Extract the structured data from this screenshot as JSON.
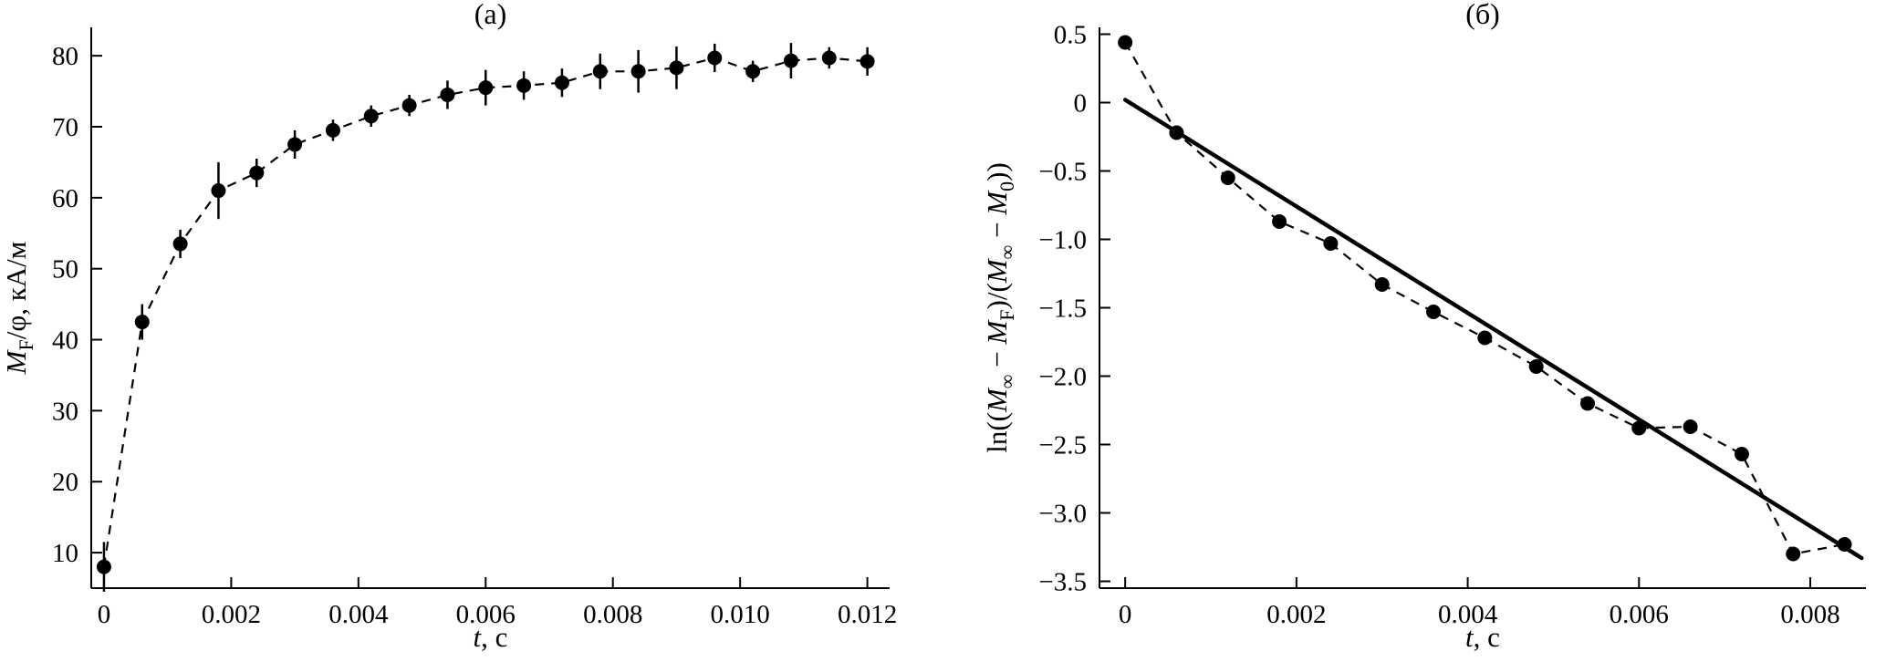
{
  "figure": {
    "background": "#ffffff",
    "ink_color": "#000000"
  },
  "chart_data": [
    {
      "type": "line",
      "panel_label": "(а)",
      "xlabel_segments": [
        {
          "text": "t",
          "italic": true
        },
        {
          "text": ", с"
        }
      ],
      "ylabel_segments": [
        {
          "text": "M",
          "italic": true
        },
        {
          "text": "F",
          "sub": true
        },
        {
          "text": "/φ, кА/м"
        }
      ],
      "xlim": [
        -0.0002,
        0.01235
      ],
      "ylim": [
        5,
        84
      ],
      "grid": false,
      "axes": "left-bottom",
      "legend": "none",
      "xticks": [
        {
          "v": 0,
          "label": "0"
        },
        {
          "v": 0.002,
          "label": "0.002"
        },
        {
          "v": 0.004,
          "label": "0.004"
        },
        {
          "v": 0.006,
          "label": "0.006"
        },
        {
          "v": 0.008,
          "label": "0.008"
        },
        {
          "v": 0.01,
          "label": "0.010"
        },
        {
          "v": 0.012,
          "label": "0.012"
        }
      ],
      "yticks": [
        {
          "v": 10,
          "label": "10"
        },
        {
          "v": 20,
          "label": "20"
        },
        {
          "v": 30,
          "label": "30"
        },
        {
          "v": 40,
          "label": "40"
        },
        {
          "v": 50,
          "label": "50"
        },
        {
          "v": 60,
          "label": "60"
        },
        {
          "v": 70,
          "label": "70"
        },
        {
          "v": 80,
          "label": "80"
        }
      ],
      "series": [
        {
          "name": "magnetization-vs-time",
          "style": "dashed-markers",
          "x": [
            0.0,
            0.0006,
            0.0012,
            0.0018,
            0.0024,
            0.003,
            0.0036,
            0.0042,
            0.0048,
            0.0054,
            0.006,
            0.0066,
            0.0072,
            0.0078,
            0.0084,
            0.009,
            0.0096,
            0.0102,
            0.0108,
            0.0114,
            0.012
          ],
          "y": [
            8.0,
            42.5,
            53.5,
            61.0,
            63.5,
            67.5,
            69.5,
            71.5,
            73.0,
            74.5,
            75.5,
            75.8,
            76.2,
            77.8,
            77.8,
            78.3,
            79.7,
            77.8,
            79.3,
            79.7,
            79.2
          ],
          "yerr": [
            3.5,
            2.5,
            2.0,
            4.0,
            2.0,
            2.0,
            1.5,
            1.5,
            1.5,
            2.0,
            2.5,
            2.0,
            2.0,
            2.5,
            3.0,
            3.0,
            2.0,
            1.5,
            2.5,
            1.5,
            2.0
          ]
        }
      ]
    },
    {
      "type": "line",
      "panel_label": "(б)",
      "xlabel_segments": [
        {
          "text": "t",
          "italic": true
        },
        {
          "text": ", с"
        }
      ],
      "ylabel_segments": [
        {
          "text": "ln(("
        },
        {
          "text": "M",
          "italic": true
        },
        {
          "text": "∞",
          "sub": true
        },
        {
          "text": " − "
        },
        {
          "text": "M",
          "italic": true
        },
        {
          "text": "F",
          "sub": true
        },
        {
          "text": ")/("
        },
        {
          "text": "M",
          "italic": true
        },
        {
          "text": "∞",
          "sub": true
        },
        {
          "text": " − "
        },
        {
          "text": "M",
          "italic": true
        },
        {
          "text": "0",
          "sub": true
        },
        {
          "text": "))"
        }
      ],
      "xlim": [
        -0.0003,
        0.00865
      ],
      "ylim": [
        -3.55,
        0.55
      ],
      "grid": false,
      "axes": "left-bottom",
      "legend": "none",
      "xticks": [
        {
          "v": 0,
          "label": "0"
        },
        {
          "v": 0.002,
          "label": "0.002"
        },
        {
          "v": 0.004,
          "label": "0.004"
        },
        {
          "v": 0.006,
          "label": "0.006"
        },
        {
          "v": 0.008,
          "label": "0.008"
        }
      ],
      "yticks": [
        {
          "v": 0.5,
          "label": "0.5"
        },
        {
          "v": 0,
          "label": "0"
        },
        {
          "v": -0.5,
          "label": "−0.5"
        },
        {
          "v": -1.0,
          "label": "−1.0"
        },
        {
          "v": -1.5,
          "label": "−1.5"
        },
        {
          "v": -2.0,
          "label": "−2.0"
        },
        {
          "v": -2.5,
          "label": "−2.5"
        },
        {
          "v": -3.0,
          "label": "−3.0"
        },
        {
          "v": -3.5,
          "label": "−3.5"
        }
      ],
      "series": [
        {
          "name": "log-relaxation-data",
          "style": "dashed-markers",
          "x": [
            0.0,
            0.0006,
            0.0012,
            0.0018,
            0.0024,
            0.003,
            0.0036,
            0.0042,
            0.0048,
            0.0054,
            0.006,
            0.0066,
            0.0072,
            0.0078,
            0.0084
          ],
          "y": [
            0.44,
            -0.22,
            -0.55,
            -0.87,
            -1.03,
            -1.33,
            -1.53,
            -1.72,
            -1.93,
            -2.2,
            -2.38,
            -2.37,
            -2.57,
            -3.3,
            -3.23
          ]
        },
        {
          "name": "linear-fit",
          "style": "solid-line",
          "x": [
            0.0,
            0.0086
          ],
          "y": [
            0.02,
            -3.33
          ]
        }
      ]
    }
  ]
}
